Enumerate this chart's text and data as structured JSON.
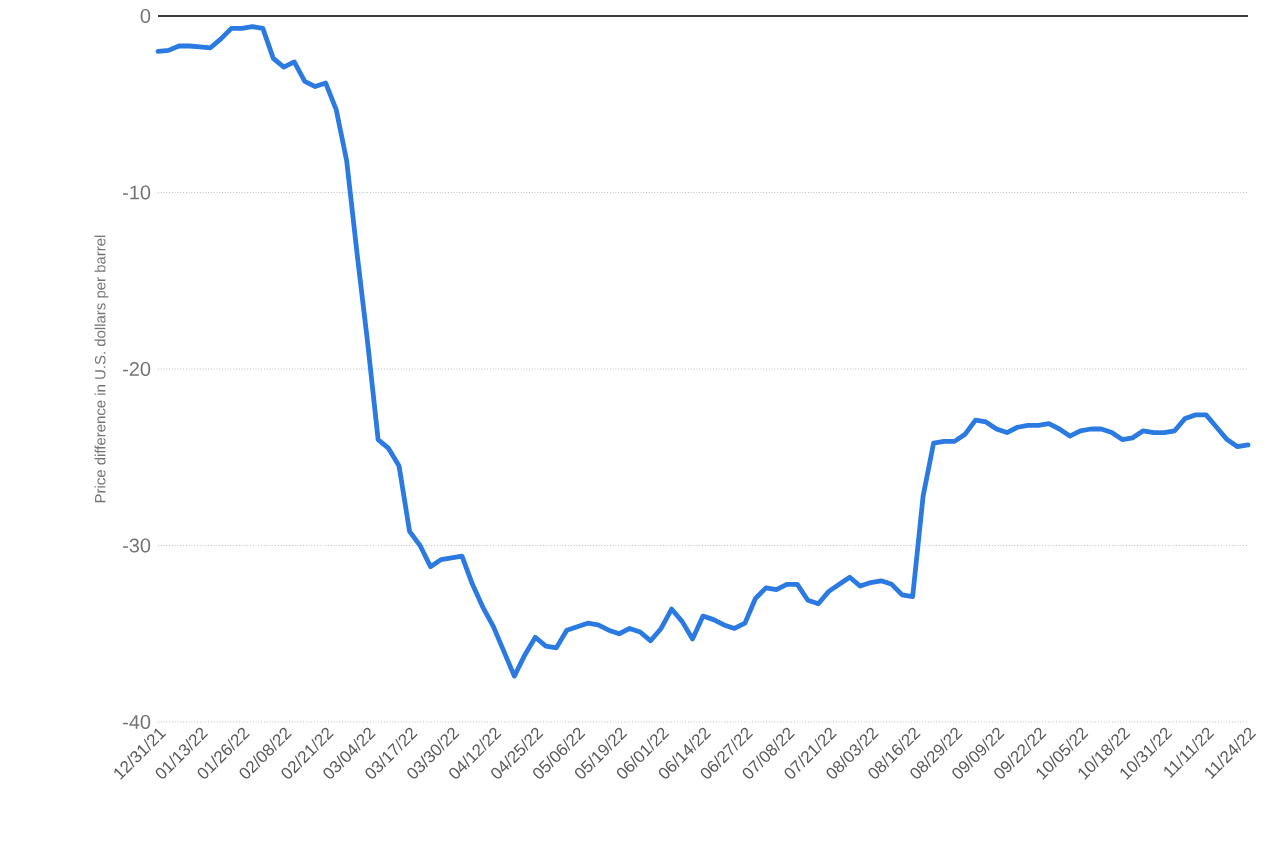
{
  "chart_data": {
    "type": "line",
    "ylabel": "Price difference in U.S. dollars per barrel",
    "categories": [
      "12/31/21",
      null,
      null,
      null,
      "01/13/22",
      null,
      null,
      null,
      "01/26/22",
      null,
      null,
      null,
      "02/08/22",
      null,
      null,
      null,
      "02/21/22",
      null,
      null,
      null,
      "03/04/22",
      null,
      null,
      null,
      "03/17/22",
      null,
      null,
      null,
      "03/30/22",
      null,
      null,
      null,
      "04/12/22",
      null,
      null,
      null,
      "04/25/22",
      null,
      null,
      null,
      "05/06/22",
      null,
      null,
      null,
      "05/19/22",
      null,
      null,
      null,
      "06/01/22",
      null,
      null,
      null,
      "06/14/22",
      null,
      null,
      null,
      "06/27/22",
      null,
      null,
      null,
      "07/08/22",
      null,
      null,
      null,
      "07/21/22",
      null,
      null,
      null,
      "08/03/22",
      null,
      null,
      null,
      "08/16/22",
      null,
      null,
      null,
      "08/29/22",
      null,
      null,
      null,
      "09/09/22",
      null,
      null,
      null,
      "09/22/22",
      null,
      null,
      null,
      "10/05/22",
      null,
      null,
      null,
      "10/18/22",
      null,
      null,
      null,
      "10/31/22",
      null,
      null,
      null,
      "11/11/22",
      null,
      null,
      null,
      "11/24/22"
    ],
    "series": [
      {
        "color": "#2a7ae2",
        "values": [
          -2.0,
          -1.95,
          -1.7,
          -1.7,
          -1.75,
          -1.8,
          -1.3,
          -0.7,
          -0.7,
          -0.6,
          -0.7,
          -2.4,
          -2.9,
          -2.6,
          -3.7,
          -4.0,
          -3.8,
          -5.3,
          -8.2,
          -13.5,
          -18.5,
          -24.0,
          -24.5,
          -25.5,
          -29.2,
          -30.0,
          -31.2,
          -30.8,
          -30.7,
          -30.6,
          -32.2,
          -33.5,
          -34.6,
          -36.0,
          -37.4,
          -36.2,
          -35.2,
          -35.7,
          -35.8,
          -34.8,
          -34.6,
          -34.4,
          -34.5,
          -34.8,
          -35.0,
          -34.7,
          -34.9,
          -35.4,
          -34.7,
          -33.6,
          -34.3,
          -35.3,
          -34.0,
          -34.2,
          -34.5,
          -34.7,
          -34.4,
          -33.0,
          -32.4,
          -32.5,
          -32.2,
          -32.2,
          -33.1,
          -33.3,
          -32.6,
          -32.2,
          -31.8,
          -32.3,
          -32.1,
          -32.0,
          -32.2,
          -32.8,
          -32.9,
          -27.2,
          -24.2,
          -24.1,
          -24.1,
          -23.7,
          -22.9,
          -23.0,
          -23.4,
          -23.6,
          -23.3,
          -23.2,
          -23.2,
          -23.1,
          -23.4,
          -23.8,
          -23.5,
          -23.4,
          -23.4,
          -23.6,
          -24.0,
          -23.9,
          -23.5,
          -23.6,
          -23.6,
          -23.5,
          -22.8,
          -22.6,
          -22.6,
          -23.3,
          -24.0,
          -24.4,
          -24.3
        ]
      }
    ],
    "ylim": [
      -40,
      0
    ],
    "yticks": [
      -40,
      -30,
      -20,
      -10,
      0
    ],
    "grid": "y",
    "marker": "none",
    "line_style": "solid"
  }
}
